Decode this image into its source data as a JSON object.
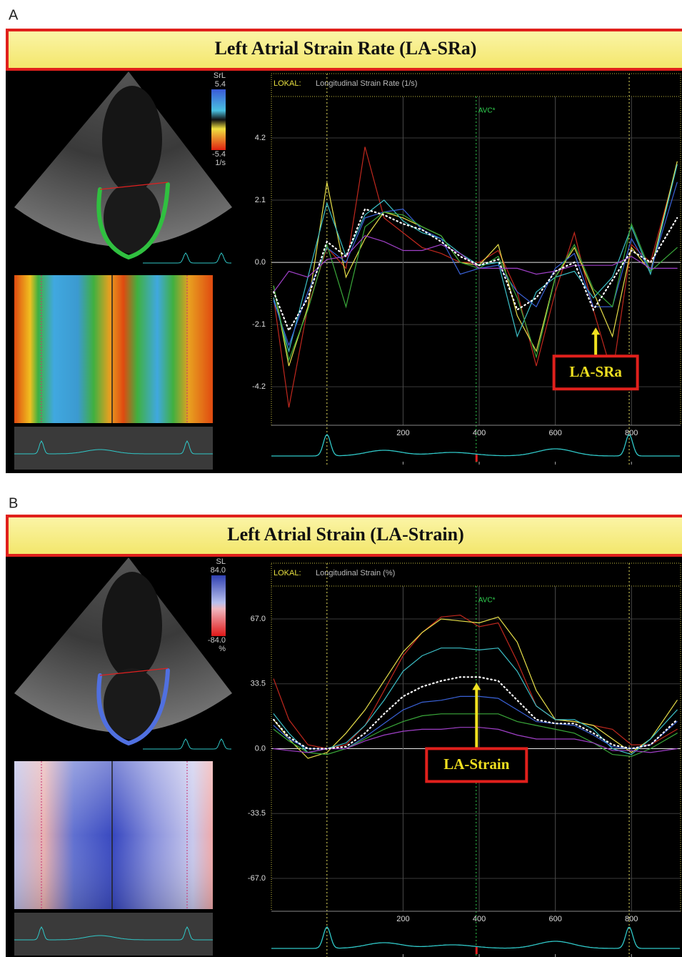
{
  "chart_data": [
    {
      "type": "line",
      "panel_label": "A",
      "title": "Left Atrial Strain Rate (LA-SRa)",
      "header": "LOKAL:",
      "axis_title": "Longitudinal Strain Rate (1/s)",
      "colorbar": {
        "label": "SrL",
        "max": 5.4,
        "min": -5.4,
        "unit": "1/s"
      },
      "x": [
        -140,
        -100,
        -50,
        0,
        50,
        100,
        150,
        200,
        250,
        300,
        350,
        400,
        450,
        500,
        550,
        600,
        650,
        700,
        750,
        800,
        850,
        920
      ],
      "series": [
        {
          "color": "#c0281e",
          "values": [
            -1.2,
            -4.9,
            -1.5,
            0.5,
            -0.2,
            3.9,
            1.5,
            1.0,
            0.5,
            0.3,
            0.0,
            0.0,
            0.4,
            -1.0,
            -3.5,
            -1.0,
            1.0,
            -1.6,
            -3.8,
            0.6,
            0.0,
            3.3
          ]
        },
        {
          "color": "#e8e04a",
          "values": [
            -0.8,
            -3.5,
            -1.5,
            2.7,
            -0.5,
            0.8,
            1.7,
            1.5,
            1.2,
            0.9,
            0.0,
            -0.1,
            0.6,
            -1.8,
            -3.0,
            -0.5,
            0.5,
            -1.0,
            -2.5,
            0.5,
            -0.3,
            3.4
          ]
        },
        {
          "color": "#3cc0c8",
          "values": [
            -1.2,
            -3.0,
            -0.5,
            2.0,
            0.2,
            1.6,
            2.1,
            1.4,
            1.0,
            0.8,
            0.3,
            -0.1,
            0.0,
            -2.5,
            -1.0,
            -0.5,
            -0.3,
            -1.2,
            -0.5,
            1.2,
            -0.4,
            3.3
          ]
        },
        {
          "color": "#3a62d8",
          "values": [
            -1.3,
            -2.8,
            -1.0,
            0.5,
            0.0,
            1.5,
            1.7,
            1.8,
            1.1,
            0.8,
            -0.4,
            -0.2,
            -0.1,
            -1.0,
            -1.5,
            -0.2,
            0.3,
            -1.5,
            -1.5,
            0.8,
            -0.3,
            2.7
          ]
        },
        {
          "color": "#3aa83a",
          "values": [
            -0.8,
            -3.3,
            -1.6,
            0.6,
            -1.5,
            1.2,
            1.7,
            1.6,
            1.2,
            0.9,
            0.0,
            -0.2,
            0.2,
            -1.2,
            -3.2,
            -0.5,
            0.6,
            -0.9,
            -1.5,
            1.3,
            -0.3,
            0.5
          ]
        },
        {
          "color": "#a040c8",
          "values": [
            -1.0,
            -0.3,
            -0.5,
            0.1,
            0.2,
            0.9,
            0.7,
            0.4,
            0.4,
            0.6,
            0.3,
            -0.2,
            -0.2,
            -0.2,
            -0.4,
            -0.3,
            -0.1,
            -0.1,
            -0.1,
            0.2,
            -0.2,
            -0.2
          ]
        },
        {
          "color": "#ffffff",
          "style": "dotted",
          "values": [
            -1.0,
            -2.3,
            -1.2,
            0.7,
            0.2,
            1.8,
            1.6,
            1.3,
            1.1,
            0.7,
            0.2,
            -0.1,
            0.1,
            -1.6,
            -1.2,
            -0.3,
            0.0,
            -1.6,
            -0.6,
            0.4,
            0.0,
            1.5
          ]
        }
      ],
      "xlim": [
        -146,
        929
      ],
      "ylim": [
        -5.5,
        5.6
      ],
      "xticks": [
        200,
        400,
        600,
        800
      ],
      "yticks": [
        4.2,
        2.1,
        {
          "value": 0,
          "label": "0.0"
        },
        -2.1,
        -4.2
      ],
      "grid": true,
      "markers": [
        {
          "x": 0,
          "color": "#e8e060"
        },
        {
          "x": 794,
          "color": "#e8e060"
        }
      ],
      "avc": {
        "label": "AVC*",
        "x": 392,
        "color": "#30d050"
      },
      "annotations": [
        {
          "text": "LA-SRa",
          "x": 706,
          "y": -2.2
        }
      ]
    },
    {
      "type": "line",
      "panel_label": "B",
      "title": "Left Atrial Strain (LA-Strain)",
      "header": "LOKAL:",
      "axis_title": "Longitudinal Strain (%)",
      "colorbar": {
        "label": "SL",
        "max": {
          "value": 84,
          "label": "84.0"
        },
        "min": {
          "value": -84,
          "label": "-84.0"
        },
        "unit": "%"
      },
      "x": [
        -140,
        -100,
        -50,
        0,
        50,
        100,
        150,
        200,
        250,
        300,
        350,
        400,
        450,
        500,
        550,
        600,
        650,
        700,
        750,
        800,
        850,
        920
      ],
      "series": [
        {
          "color": "#c0281e",
          "values": [
            36,
            15,
            2,
            0,
            2,
            12,
            30,
            48,
            60,
            68,
            69,
            63,
            65,
            45,
            22,
            15,
            14,
            12,
            10,
            2,
            2,
            10
          ]
        },
        {
          "color": "#e8e04a",
          "values": [
            15,
            5,
            -5,
            -2,
            8,
            20,
            35,
            50,
            60,
            67,
            66,
            65,
            68,
            55,
            30,
            15,
            14,
            12,
            5,
            -2,
            5,
            25
          ]
        },
        {
          "color": "#3cc0c8",
          "values": [
            18,
            8,
            -2,
            0,
            3,
            12,
            25,
            40,
            48,
            52,
            52,
            51,
            52,
            40,
            22,
            15,
            15,
            10,
            0,
            -3,
            5,
            20
          ]
        },
        {
          "color": "#3a62d8",
          "values": [
            12,
            5,
            0,
            0,
            0,
            6,
            13,
            20,
            24,
            25,
            27,
            27,
            26,
            20,
            14,
            13,
            12,
            7,
            1,
            0,
            2,
            14
          ]
        },
        {
          "color": "#3aa83a",
          "values": [
            10,
            4,
            -2,
            -3,
            0,
            5,
            10,
            14,
            17,
            18,
            18,
            18,
            18,
            14,
            12,
            10,
            8,
            3,
            -3,
            -4,
            0,
            8
          ]
        },
        {
          "color": "#a040c8",
          "values": [
            0,
            -1,
            -2,
            0,
            0,
            4,
            7,
            9,
            10,
            10,
            11,
            11,
            10,
            7,
            5,
            5,
            5,
            3,
            -1,
            -1,
            -2,
            0
          ]
        },
        {
          "color": "#ffffff",
          "style": "dotted",
          "values": [
            15,
            6,
            0,
            0,
            1,
            8,
            18,
            27,
            32,
            35,
            37,
            37,
            35,
            25,
            15,
            13,
            13,
            8,
            2,
            0,
            2,
            15
          ]
        }
      ],
      "xlim": [
        -146,
        929
      ],
      "ylim": [
        -84,
        84
      ],
      "xticks": [
        200,
        400,
        600,
        800
      ],
      "yticks": [
        {
          "value": 67,
          "label": "67.0"
        },
        33.5,
        {
          "value": 0,
          "label": "0.0"
        },
        -33.5,
        {
          "value": -67,
          "label": "-67.0"
        }
      ],
      "grid": true,
      "markers": [
        {
          "x": 0,
          "color": "#e8e060"
        },
        {
          "x": 794,
          "color": "#e8e060"
        }
      ],
      "avc": {
        "label": "AVC*",
        "x": 392,
        "color": "#30d050"
      },
      "annotations": [
        {
          "text": "LA-Strain",
          "x": 393,
          "y": 34
        }
      ]
    }
  ]
}
